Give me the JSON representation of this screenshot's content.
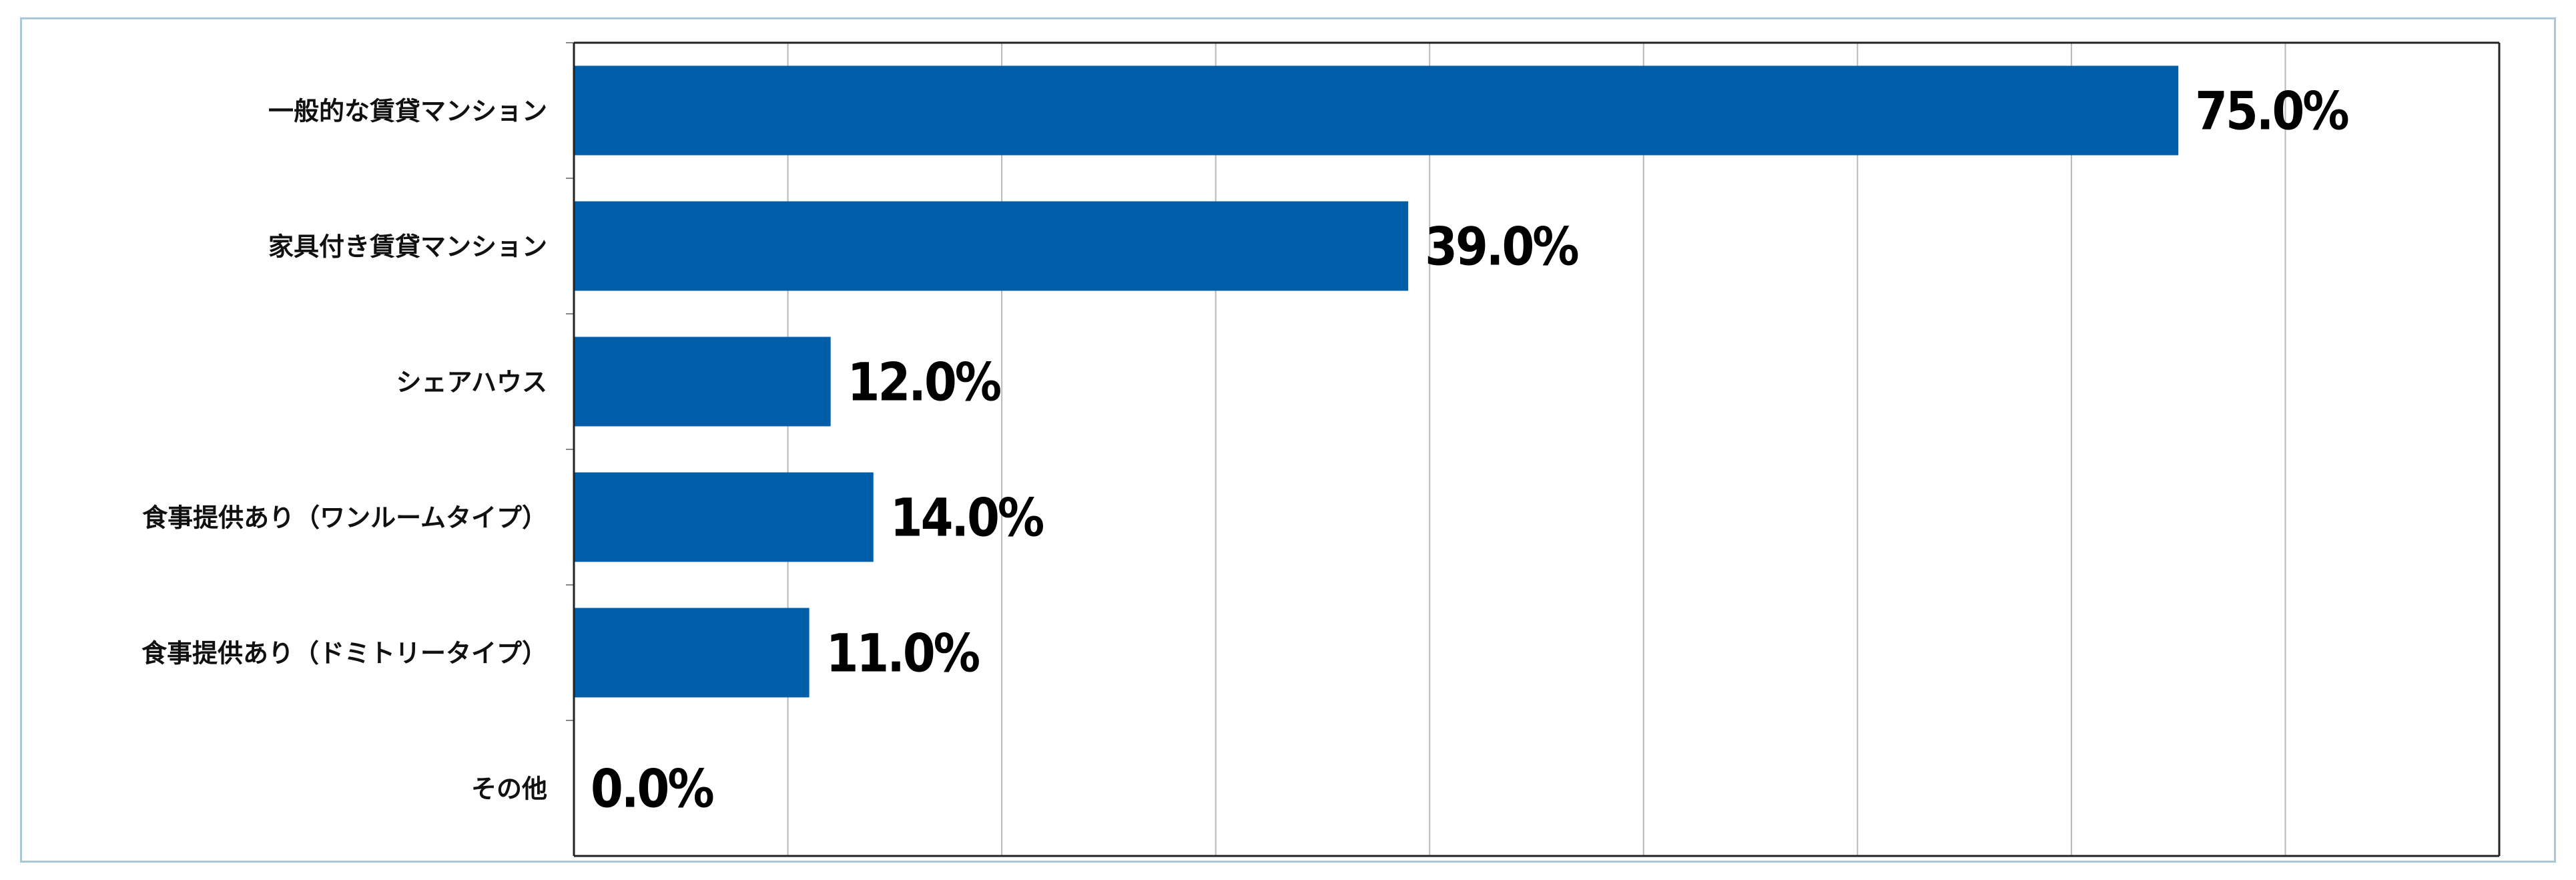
{
  "chart_data": {
    "type": "bar",
    "orientation": "horizontal",
    "categories": [
      "一般的な賃貸マンション",
      "家具付き賃貸マンション",
      "シェアハウス",
      "食事提供あり（ワンルームタイプ）",
      "食事提供あり（ドミトリータイプ）",
      "その他"
    ],
    "values": [
      75.0,
      39.0,
      12.0,
      14.0,
      11.0,
      0.0
    ],
    "value_labels": [
      "75.0%",
      "39.0%",
      "12.0%",
      "14.0%",
      "11.0%",
      "0.0%"
    ],
    "title": "",
    "xlabel": "",
    "ylabel": "",
    "xlim": [
      0,
      90
    ],
    "grid": true,
    "bar_color": "#005ea8",
    "gridline_color": "#b8b8b8",
    "border_color": "#a9c7d6"
  }
}
